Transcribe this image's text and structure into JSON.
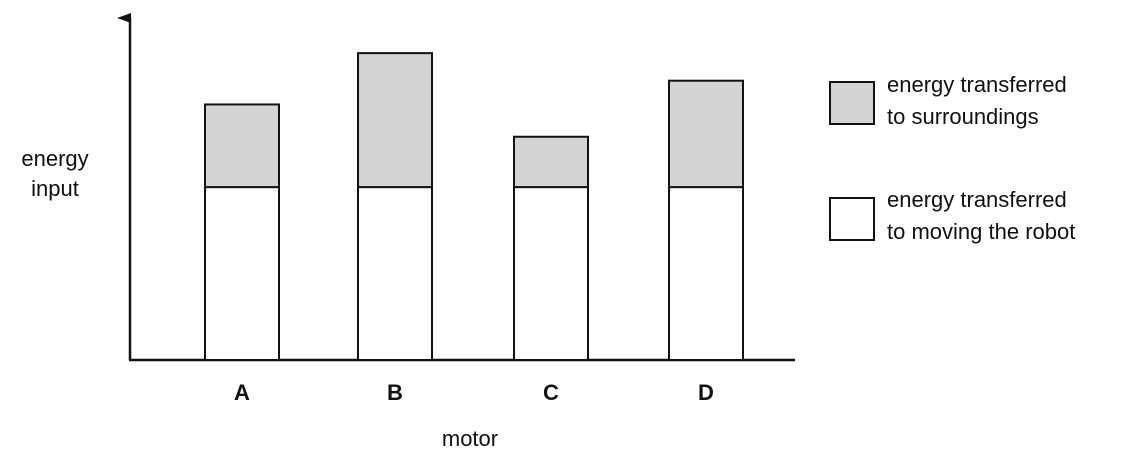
{
  "chart_data": {
    "type": "bar",
    "stacked": true,
    "categories": [
      "A",
      "B",
      "C",
      "D"
    ],
    "series": [
      {
        "name": "energy transferred to moving the robot",
        "values": [
          182,
          182,
          182,
          182
        ],
        "color": "#ffffff"
      },
      {
        "name": "energy transferred to surroundings",
        "values": [
          87,
          141,
          53,
          112
        ],
        "color": "#d3d3d3"
      }
    ],
    "xlabel": "motor",
    "ylabel": [
      "energy",
      "input"
    ],
    "ylim": [
      0,
      360
    ],
    "grid": false,
    "legend_position": "right",
    "legend": [
      {
        "lines": [
          "energy transferred",
          "to surroundings"
        ],
        "color": "#d3d3d3"
      },
      {
        "lines": [
          "energy transferred",
          "to moving the robot"
        ],
        "color": "#ffffff"
      }
    ]
  }
}
